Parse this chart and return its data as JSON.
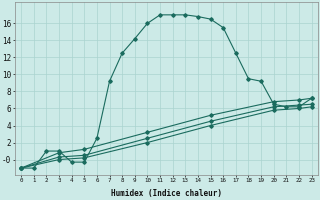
{
  "xlabel": "Humidex (Indice chaleur)",
  "bg_color": "#cceae7",
  "grid_color": "#aad4d0",
  "line_color": "#1a6b5e",
  "line1_x": [
    0,
    1,
    2,
    3,
    4,
    5,
    6,
    7,
    8,
    9,
    10,
    11,
    12,
    13,
    14,
    15,
    16,
    17,
    18,
    19,
    20,
    21,
    22,
    23
  ],
  "line1_y": [
    -1,
    -1,
    1,
    1,
    -0.3,
    -0.3,
    2.5,
    9.2,
    12.5,
    14.2,
    16.0,
    17.0,
    17.0,
    17.0,
    16.8,
    16.5,
    15.5,
    12.5,
    9.5,
    9.2,
    6.5,
    6.2,
    6.2,
    7.2
  ],
  "line2_x": [
    0,
    3,
    5,
    10,
    15,
    20,
    22,
    23
  ],
  "line2_y": [
    -1,
    0.8,
    1.2,
    3.2,
    5.2,
    6.8,
    7.0,
    7.2
  ],
  "line3_x": [
    0,
    3,
    5,
    10,
    15,
    20,
    22,
    23
  ],
  "line3_y": [
    -1,
    0.3,
    0.5,
    2.5,
    4.5,
    6.2,
    6.4,
    6.5
  ],
  "line4_x": [
    0,
    3,
    5,
    10,
    15,
    20,
    22,
    23
  ],
  "line4_y": [
    -1,
    0.0,
    0.2,
    2.0,
    4.0,
    5.8,
    6.0,
    6.2
  ],
  "xlim": [
    -0.5,
    23.5
  ],
  "ylim": [
    -1.8,
    18.5
  ],
  "yticks": [
    0,
    2,
    4,
    6,
    8,
    10,
    12,
    14,
    16
  ],
  "ytick_labels": [
    "-0",
    "2",
    "4",
    "6",
    "8",
    "10",
    "12",
    "14",
    "16"
  ],
  "xticks": [
    0,
    1,
    2,
    3,
    4,
    5,
    6,
    7,
    8,
    9,
    10,
    11,
    12,
    13,
    14,
    15,
    16,
    17,
    18,
    19,
    20,
    21,
    22,
    23
  ]
}
